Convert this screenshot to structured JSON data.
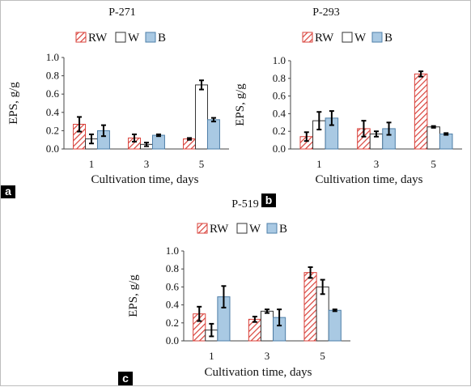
{
  "colors": {
    "rw_stroke": "#d9413a",
    "rw_fill": "#ffffff",
    "w_stroke": "#333333",
    "w_fill": "#ffffff",
    "b_stroke": "#4e7fa8",
    "b_fill": "#a9c9e3",
    "axis": "#444444",
    "panel_label_bg": "#000000",
    "panel_label_text": "#ffffff"
  },
  "chart_data": [
    {
      "type": "bar",
      "panel": "a",
      "title": "P-271",
      "xlabel": "Cultivation time, days",
      "ylabel": "EPS, g/g",
      "ylim": [
        0,
        1.0
      ],
      "yticks": [
        "0.0",
        "0.2",
        "0.4",
        "0.6",
        "0.8",
        "1.0"
      ],
      "categories": [
        "1",
        "3",
        "5"
      ],
      "legend": "top",
      "series": [
        {
          "name": "RW",
          "values": [
            0.27,
            0.12,
            0.11
          ],
          "errors": [
            0.08,
            0.04,
            0.01
          ]
        },
        {
          "name": "W",
          "values": [
            0.11,
            0.05,
            0.7
          ],
          "errors": [
            0.05,
            0.02,
            0.05
          ]
        },
        {
          "name": "B",
          "values": [
            0.2,
            0.15,
            0.32
          ],
          "errors": [
            0.06,
            0.01,
            0.02
          ]
        }
      ]
    },
    {
      "type": "bar",
      "panel": "b",
      "title": "P-293",
      "xlabel": "Cultivation time, days",
      "ylabel": "EPS, g/g",
      "ylim": [
        0,
        1.0
      ],
      "yticks": [
        "0.0",
        "0.2",
        "0.4",
        "0.6",
        "0.8",
        "1.0"
      ],
      "categories": [
        "1",
        "3",
        "5"
      ],
      "legend": "top",
      "series": [
        {
          "name": "RW",
          "values": [
            0.14,
            0.23,
            0.85
          ],
          "errors": [
            0.05,
            0.09,
            0.03
          ]
        },
        {
          "name": "W",
          "values": [
            0.32,
            0.17,
            0.25
          ],
          "errors": [
            0.1,
            0.03,
            0.01
          ]
        },
        {
          "name": "B",
          "values": [
            0.35,
            0.23,
            0.17
          ],
          "errors": [
            0.08,
            0.07,
            0.01
          ]
        }
      ]
    },
    {
      "type": "bar",
      "panel": "c",
      "title": "P-519",
      "xlabel": "Cultivation time, days",
      "ylabel": "EPS, g/g",
      "ylim": [
        0,
        1.0
      ],
      "yticks": [
        "0.0",
        "0.2",
        "0.4",
        "0.6",
        "0.8",
        "1.0"
      ],
      "categories": [
        "1",
        "3",
        "5"
      ],
      "legend": "top",
      "series": [
        {
          "name": "RW",
          "values": [
            0.3,
            0.24,
            0.76
          ],
          "errors": [
            0.08,
            0.03,
            0.06
          ]
        },
        {
          "name": "W",
          "values": [
            0.12,
            0.33,
            0.6
          ],
          "errors": [
            0.07,
            0.02,
            0.08
          ]
        },
        {
          "name": "B",
          "values": [
            0.49,
            0.26,
            0.34
          ],
          "errors": [
            0.12,
            0.09,
            0.01
          ]
        }
      ]
    }
  ]
}
